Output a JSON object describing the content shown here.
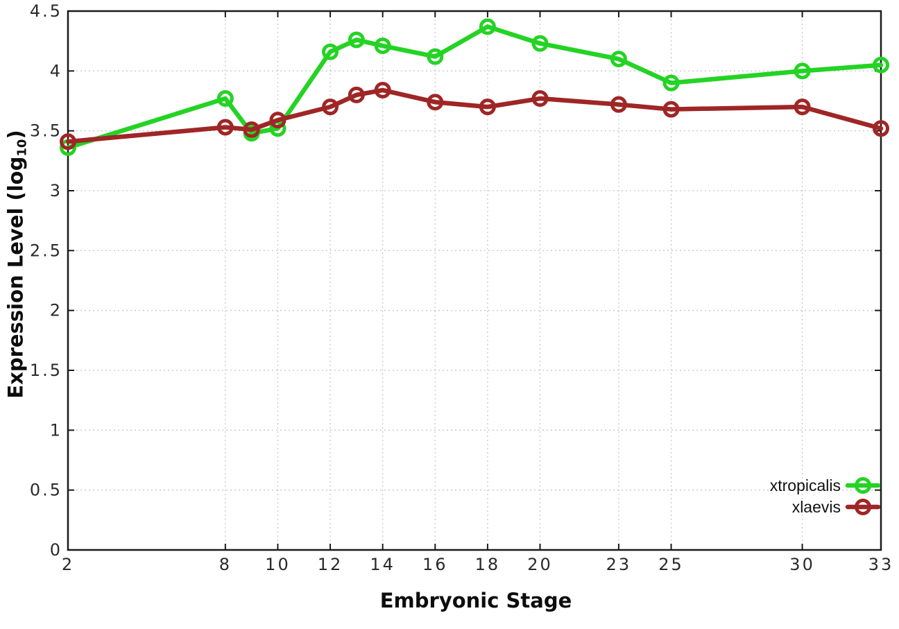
{
  "page": {
    "background": "#ffffff"
  },
  "chart_data": {
    "type": "line",
    "title": "",
    "xlabel": "Embryonic Stage",
    "ylabel": "Expression Level (log10)",
    "ylabel_prefix": "Expression Level (log",
    "ylabel_sub": "10",
    "ylabel_suffix": ")",
    "x": [
      2,
      8,
      9,
      10,
      12,
      13,
      14,
      16,
      18,
      20,
      23,
      25,
      30,
      33
    ],
    "series": [
      {
        "name": "xtropicalis",
        "color": "#24d324",
        "marker": "open-circle",
        "values": [
          3.36,
          3.77,
          3.48,
          3.52,
          4.16,
          4.26,
          4.21,
          4.12,
          4.37,
          4.23,
          4.1,
          3.9,
          4.0,
          4.05
        ]
      },
      {
        "name": "xlaevis",
        "color": "#9f2626",
        "marker": "open-circle",
        "values": [
          3.41,
          3.53,
          3.51,
          3.59,
          3.7,
          3.8,
          3.84,
          3.74,
          3.7,
          3.77,
          3.72,
          3.68,
          3.7,
          3.52
        ]
      }
    ],
    "x_tick_values": [
      2,
      8,
      10,
      12,
      14,
      16,
      18,
      20,
      23,
      25,
      30,
      33
    ],
    "x_tick_labels": [
      "2",
      "8",
      "10",
      "12",
      "14",
      "16",
      "18",
      "20",
      "23",
      "25",
      "30",
      "33"
    ],
    "y_tick_values": [
      0,
      0.5,
      1,
      1.5,
      2,
      2.5,
      3,
      3.5,
      4,
      4.5
    ],
    "y_tick_labels": [
      "0",
      "0.5",
      "1",
      "1.5",
      "2",
      "2.5",
      "3",
      "3.5",
      "4",
      "4.5"
    ],
    "xlim": [
      2,
      33
    ],
    "ylim": [
      0,
      4.5
    ],
    "grid": "dotted",
    "legend_position": "inside-bottom-right",
    "axis_color": "#1a1a1a",
    "grid_color": "#c8c8c8",
    "tick_label_color": "#2a2a2a"
  }
}
